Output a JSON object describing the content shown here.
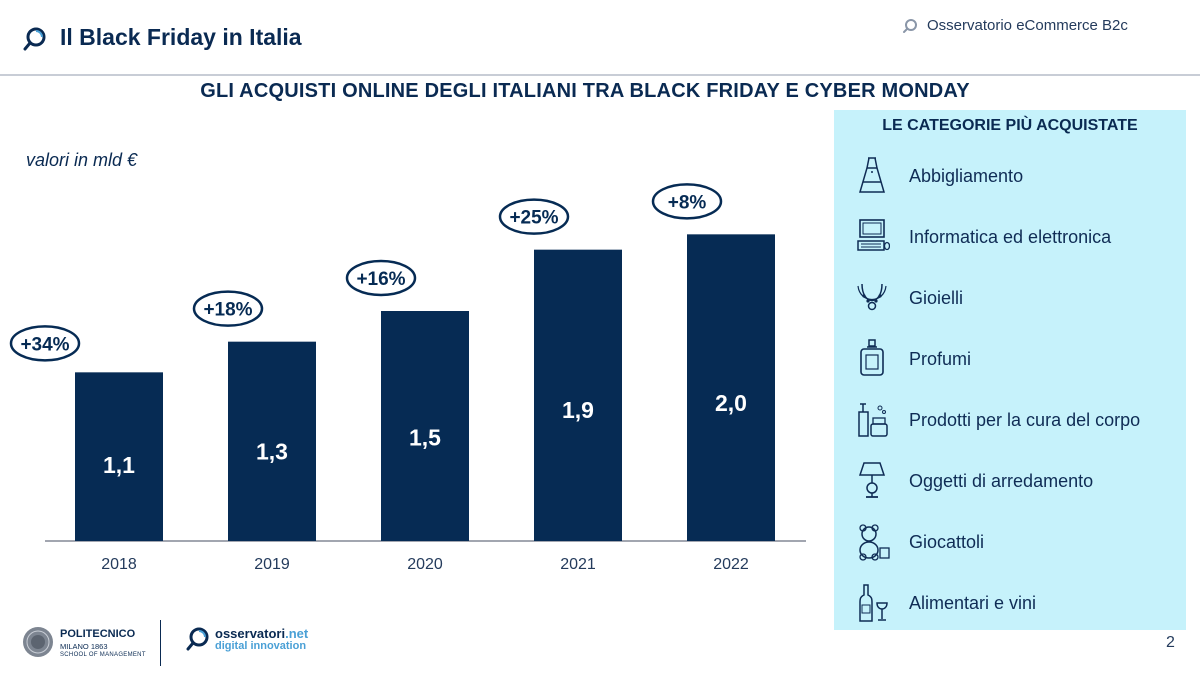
{
  "header": {
    "title": "Il Black Friday in Italia",
    "source": "Osservatorio eCommerce B2c"
  },
  "chart_title": "GLI ACQUISTI ONLINE DEGLI ITALIANI TRA BLACK FRIDAY E CYBER MONDAY",
  "colors": {
    "bar": "#062b54",
    "panel_bg": "#c6f2fb",
    "text": "#0a2a52"
  },
  "chart_data": {
    "type": "bar",
    "subtitle": "valori in mld €",
    "categories": [
      "2018",
      "2019",
      "2020",
      "2021",
      "2022"
    ],
    "values": [
      1.1,
      1.3,
      1.5,
      1.9,
      2.0
    ],
    "value_labels": [
      "1,1",
      "1,3",
      "1,5",
      "1,9",
      "2,0"
    ],
    "growth_labels": [
      "+34%",
      "+18%",
      "+16%",
      "+25%",
      "+8%"
    ],
    "ylim": [
      0,
      2.25
    ],
    "grid": false,
    "legend": "none"
  },
  "categories_panel": {
    "title": "LE CATEGORIE PIÙ ACQUISTATE",
    "items": [
      {
        "label": "Abbigliamento",
        "icon": "dress-icon"
      },
      {
        "label": "Informatica ed elettronica",
        "icon": "computer-icon"
      },
      {
        "label": "Gioielli",
        "icon": "necklace-icon"
      },
      {
        "label": "Profumi",
        "icon": "perfume-icon"
      },
      {
        "label": "Prodotti per la cura del corpo",
        "icon": "body-care-icon"
      },
      {
        "label": "Oggetti di arredamento",
        "icon": "lamp-icon"
      },
      {
        "label": "Giocattoli",
        "icon": "teddy-bear-icon"
      },
      {
        "label": "Alimentari e vini",
        "icon": "wine-icon"
      }
    ]
  },
  "footer": {
    "polimi_name": "POLITECNICO",
    "polimi_city": "MILANO 1863",
    "polimi_school": "SCHOOL OF MANAGEMENT",
    "osservatori_line1": "osservatori",
    "osservatori_net": ".net",
    "osservatori_line2": "digital innovation",
    "page_number": "2"
  }
}
